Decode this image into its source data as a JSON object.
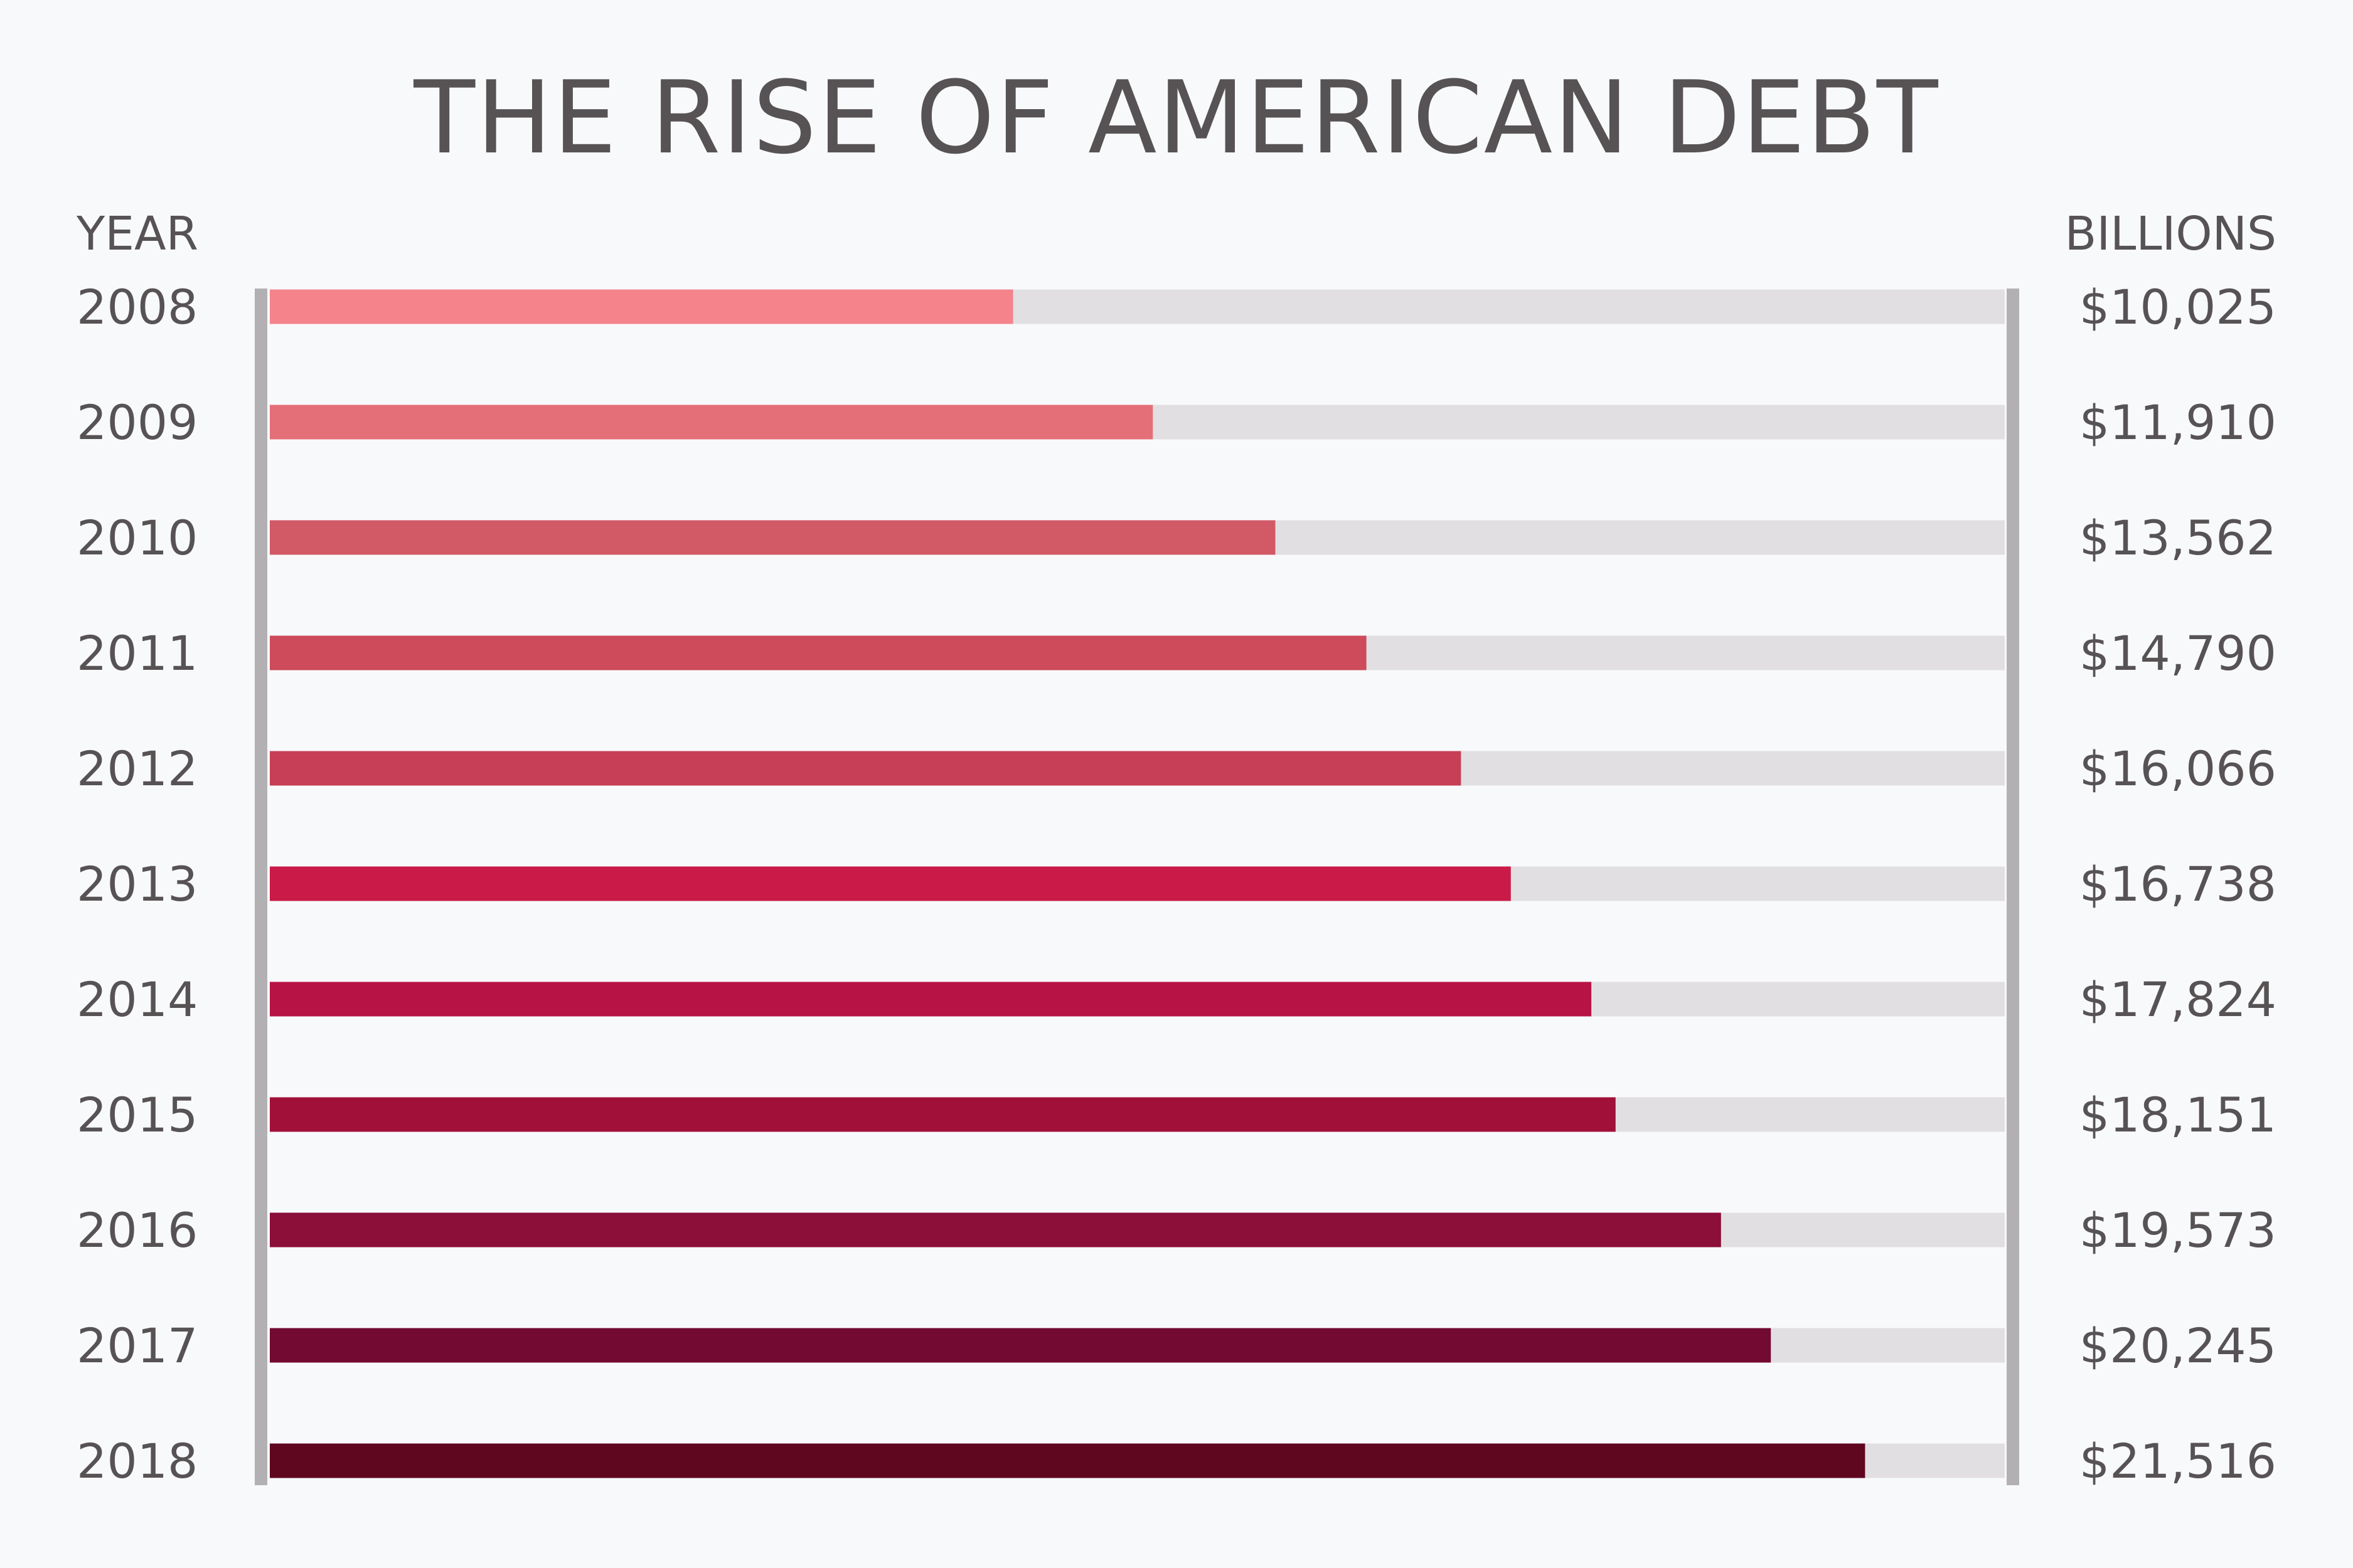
{
  "title": "THE RISE OF AMERICAN DEBT",
  "headers": {
    "left": "YEAR",
    "right": "BILLIONS"
  },
  "colors": {
    "background": "#f8f9fb",
    "track": "#e2dfe2",
    "frame": "#b3b0b3",
    "text": "#575355"
  },
  "chart_data": {
    "type": "bar",
    "orientation": "horizontal",
    "title": "THE RISE OF AMERICAN DEBT",
    "xlabel": "BILLIONS",
    "ylabel": "YEAR",
    "categories": [
      "2008",
      "2009",
      "2010",
      "2011",
      "2012",
      "2013",
      "2014",
      "2015",
      "2016",
      "2017",
      "2018"
    ],
    "values": [
      10025,
      11910,
      13562,
      14790,
      16066,
      16738,
      17824,
      18151,
      19573,
      20245,
      21516
    ],
    "value_labels": [
      "$10,025",
      "$11,910",
      "$13,562",
      "$14,790",
      "$16,066",
      "$16,738",
      "$17,824",
      "$18,151",
      "$19,573",
      "$20,245",
      "$21,516"
    ],
    "xlim": [
      0,
      23400
    ],
    "bar_colors": [
      "#f4838c",
      "#e56f78",
      "#d25966",
      "#cd4b5a",
      "#c63f56",
      "#ca1a48",
      "#b81345",
      "#a11039",
      "#8b0f39",
      "#730a31",
      "#5f071f"
    ],
    "grid": false,
    "legend": "none"
  }
}
